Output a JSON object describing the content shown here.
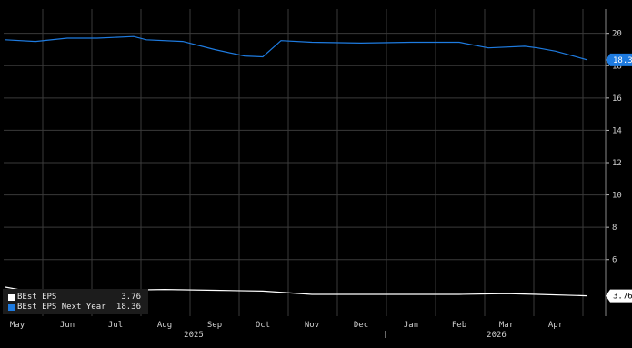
{
  "chart_data": {
    "type": "line",
    "ylim": [
      2.5,
      21.5
    ],
    "y_ticks": [
      6,
      8,
      10,
      12,
      14,
      16,
      18,
      20
    ],
    "x_ticks": [
      "May",
      "Jun",
      "Jul",
      "Aug",
      "Sep",
      "Oct",
      "Nov",
      "Dec",
      "Jan",
      "Feb",
      "Mar",
      "Apr"
    ],
    "year_labels": [
      "2025",
      "2026"
    ],
    "grid": true,
    "legend_position": "bottom-left",
    "series": [
      {
        "name": "BEst EPS",
        "color": "#ffffff",
        "last_value": "3.76",
        "points": [
          [
            "May",
            4.3
          ],
          [
            "May",
            3.95
          ],
          [
            "Jun",
            4.0
          ],
          [
            "Jul",
            4.1
          ],
          [
            "Aug",
            4.15
          ],
          [
            "Sep",
            4.1
          ],
          [
            "Oct",
            4.05
          ],
          [
            "Nov",
            3.85
          ],
          [
            "Dec",
            3.85
          ],
          [
            "Jan",
            3.85
          ],
          [
            "Feb",
            3.85
          ],
          [
            "Mar",
            3.9
          ],
          [
            "Apr",
            3.85
          ],
          [
            "Apr",
            3.76
          ]
        ]
      },
      {
        "name": "BEst EPS Next Year",
        "color": "#1e7be0",
        "last_value": "18.36",
        "points": [
          [
            "May",
            19.6
          ],
          [
            "May",
            19.5
          ],
          [
            "Jun",
            19.7
          ],
          [
            "Jul",
            19.7
          ],
          [
            "Jul",
            19.8
          ],
          [
            "Aug",
            19.6
          ],
          [
            "Aug",
            19.5
          ],
          [
            "Sep",
            19.0
          ],
          [
            "Oct",
            18.6
          ],
          [
            "Oct",
            18.55
          ],
          [
            "Oct",
            19.55
          ],
          [
            "Nov",
            19.45
          ],
          [
            "Dec",
            19.4
          ],
          [
            "Jan",
            19.45
          ],
          [
            "Feb",
            19.45
          ],
          [
            "Mar",
            19.1
          ],
          [
            "Mar",
            19.2
          ],
          [
            "Apr",
            19.1
          ],
          [
            "Apr",
            18.9
          ],
          [
            "Apr",
            18.36
          ]
        ]
      }
    ]
  }
}
